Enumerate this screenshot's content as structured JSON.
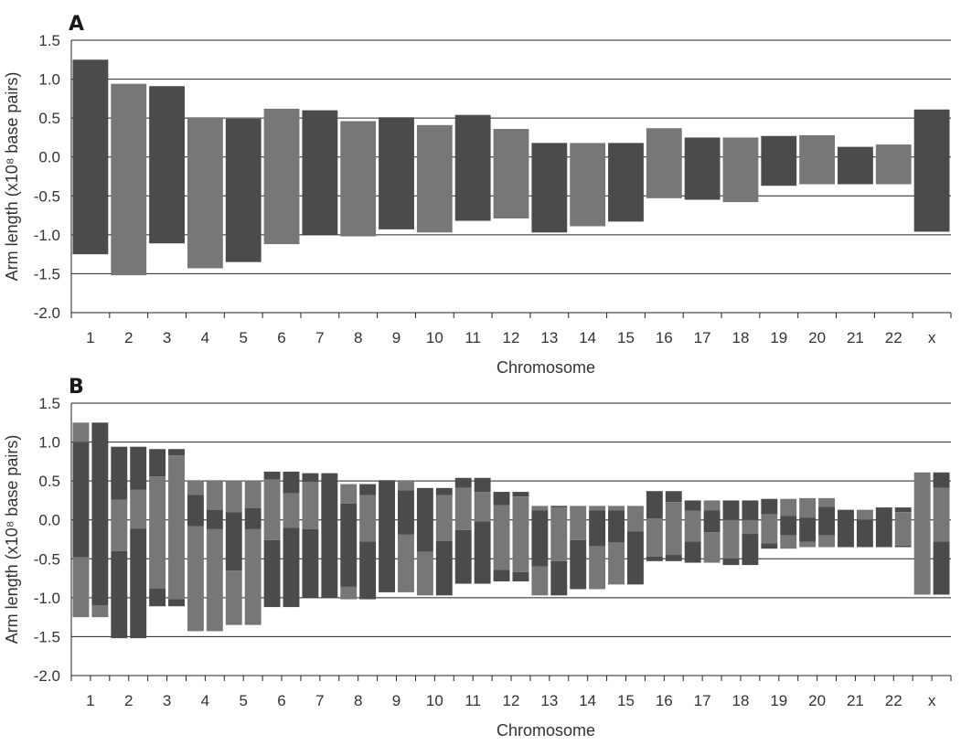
{
  "colors": {
    "dark": "#4b4b4b",
    "light": "#777777",
    "axis": "#222222",
    "text": "#333333"
  },
  "chart_data": [
    {
      "panel": "A",
      "type": "bar",
      "xlabel": "Chromosome",
      "ylabel": "Arm length (x10⁸ base pairs)",
      "ylim": [
        -2.0,
        1.5
      ],
      "yticks": [
        "1.5",
        "1.0",
        "0.5",
        "0.0",
        "-0.5",
        "-1.0",
        "-1.5",
        "-2.0"
      ],
      "gridlines": [
        1.0,
        0.5,
        0.0,
        -0.5,
        -1.0,
        -1.5
      ],
      "categories": [
        "1",
        "2",
        "3",
        "4",
        "5",
        "6",
        "7",
        "8",
        "9",
        "10",
        "11",
        "12",
        "13",
        "14",
        "15",
        "16",
        "17",
        "18",
        "19",
        "20",
        "21",
        "22",
        "x"
      ],
      "bars": [
        {
          "top": 1.25,
          "bottom": -1.25
        },
        {
          "top": 0.94,
          "bottom": -1.52
        },
        {
          "top": 0.91,
          "bottom": -1.11
        },
        {
          "top": 0.51,
          "bottom": -1.43
        },
        {
          "top": 0.49,
          "bottom": -1.35
        },
        {
          "top": 0.62,
          "bottom": -1.12
        },
        {
          "top": 0.6,
          "bottom": -1.0
        },
        {
          "top": 0.46,
          "bottom": -1.02
        },
        {
          "top": 0.51,
          "bottom": -0.93
        },
        {
          "top": 0.41,
          "bottom": -0.97
        },
        {
          "top": 0.54,
          "bottom": -0.82
        },
        {
          "top": 0.36,
          "bottom": -0.79
        },
        {
          "top": 0.18,
          "bottom": -0.97
        },
        {
          "top": 0.18,
          "bottom": -0.89
        },
        {
          "top": 0.18,
          "bottom": -0.83
        },
        {
          "top": 0.37,
          "bottom": -0.53
        },
        {
          "top": 0.25,
          "bottom": -0.55
        },
        {
          "top": 0.25,
          "bottom": -0.58
        },
        {
          "top": 0.27,
          "bottom": -0.37
        },
        {
          "top": 0.28,
          "bottom": -0.35
        },
        {
          "top": 0.13,
          "bottom": -0.35
        },
        {
          "top": 0.16,
          "bottom": -0.35
        },
        {
          "top": 0.61,
          "bottom": -0.96
        }
      ]
    },
    {
      "panel": "B",
      "type": "bar",
      "xlabel": "Chromosome",
      "ylabel": "Arm length (x10⁸ base pairs)",
      "ylim": [
        -2.0,
        1.5
      ],
      "yticks": [
        "1.5",
        "1.0",
        "0.5",
        "0.0",
        "-0.5",
        "-1.0",
        "-1.5",
        "-2.0"
      ],
      "gridlines": [
        1.0,
        0.5,
        0.0,
        -0.5,
        -1.0,
        -1.5
      ],
      "categories": [
        "1",
        "2",
        "3",
        "4",
        "5",
        "6",
        "7",
        "8",
        "9",
        "10",
        "11",
        "12",
        "13",
        "14",
        "15",
        "16",
        "17",
        "18",
        "19",
        "20",
        "21",
        "22",
        "x"
      ],
      "bars": [
        {
          "segs": [
            [
              1.25,
              1.0,
              "light"
            ],
            [
              1.0,
              -0.48,
              "dark"
            ],
            [
              -0.48,
              -1.25,
              "light"
            ]
          ]
        },
        {
          "segs": [
            [
              1.25,
              -1.1,
              "dark"
            ],
            [
              -1.1,
              -1.25,
              "light"
            ]
          ]
        },
        {
          "segs": [
            [
              0.94,
              0.26,
              "dark"
            ],
            [
              0.26,
              -0.4,
              "light"
            ],
            [
              -0.4,
              -1.52,
              "dark"
            ]
          ]
        },
        {
          "segs": [
            [
              0.94,
              0.39,
              "dark"
            ],
            [
              0.39,
              -0.11,
              "light"
            ],
            [
              -0.11,
              -1.52,
              "dark"
            ]
          ]
        },
        {
          "segs": [
            [
              0.91,
              0.56,
              "dark"
            ],
            [
              0.56,
              -0.88,
              "light"
            ],
            [
              -0.88,
              -1.11,
              "dark"
            ]
          ]
        },
        {
          "segs": [
            [
              0.91,
              0.83,
              "dark"
            ],
            [
              0.83,
              -1.02,
              "light"
            ],
            [
              -1.02,
              -1.11,
              "dark"
            ]
          ]
        },
        {
          "segs": [
            [
              0.51,
              0.32,
              "light"
            ],
            [
              0.32,
              -0.08,
              "dark"
            ],
            [
              -0.08,
              -1.43,
              "light"
            ]
          ]
        },
        {
          "segs": [
            [
              0.51,
              0.13,
              "light"
            ],
            [
              0.13,
              -0.12,
              "dark"
            ],
            [
              -0.12,
              -1.43,
              "light"
            ]
          ]
        },
        {
          "segs": [
            [
              0.49,
              0.1,
              "light"
            ],
            [
              0.1,
              -0.65,
              "dark"
            ],
            [
              -0.65,
              -1.35,
              "light"
            ]
          ]
        },
        {
          "segs": [
            [
              0.49,
              0.15,
              "light"
            ],
            [
              0.15,
              -0.12,
              "dark"
            ],
            [
              -0.12,
              -1.35,
              "light"
            ]
          ]
        },
        {
          "segs": [
            [
              0.62,
              0.52,
              "dark"
            ],
            [
              0.52,
              -0.26,
              "light"
            ],
            [
              -0.26,
              -1.12,
              "dark"
            ]
          ]
        },
        {
          "segs": [
            [
              0.62,
              0.34,
              "dark"
            ],
            [
              0.34,
              -0.1,
              "light"
            ],
            [
              -0.1,
              -1.12,
              "dark"
            ]
          ]
        },
        {
          "segs": [
            [
              0.6,
              0.49,
              "dark"
            ],
            [
              0.49,
              -0.12,
              "light"
            ],
            [
              -0.12,
              -1.0,
              "dark"
            ]
          ]
        },
        {
          "segs": [
            [
              0.6,
              -1.0,
              "dark"
            ]
          ]
        },
        {
          "segs": [
            [
              0.46,
              0.21,
              "light"
            ],
            [
              0.21,
              -0.86,
              "dark"
            ],
            [
              -0.86,
              -1.02,
              "light"
            ]
          ]
        },
        {
          "segs": [
            [
              0.46,
              0.32,
              "dark"
            ],
            [
              0.32,
              -0.28,
              "light"
            ],
            [
              -0.28,
              -1.02,
              "dark"
            ]
          ]
        },
        {
          "segs": [
            [
              0.51,
              -0.93,
              "dark"
            ]
          ]
        },
        {
          "segs": [
            [
              0.51,
              0.38,
              "light"
            ],
            [
              0.38,
              -0.19,
              "dark"
            ],
            [
              -0.19,
              -0.93,
              "light"
            ]
          ]
        },
        {
          "segs": [
            [
              0.41,
              -0.41,
              "dark"
            ],
            [
              -0.41,
              -0.97,
              "light"
            ]
          ]
        },
        {
          "segs": [
            [
              0.41,
              0.32,
              "dark"
            ],
            [
              0.32,
              -0.27,
              "light"
            ],
            [
              -0.27,
              -0.97,
              "dark"
            ]
          ]
        },
        {
          "segs": [
            [
              0.54,
              0.41,
              "dark"
            ],
            [
              0.41,
              -0.13,
              "light"
            ],
            [
              -0.13,
              -0.82,
              "dark"
            ]
          ]
        },
        {
          "segs": [
            [
              0.54,
              0.36,
              "dark"
            ],
            [
              0.36,
              -0.02,
              "light"
            ],
            [
              -0.02,
              -0.82,
              "dark"
            ]
          ]
        },
        {
          "segs": [
            [
              0.36,
              0.19,
              "dark"
            ],
            [
              0.19,
              -0.64,
              "light"
            ],
            [
              -0.64,
              -0.79,
              "dark"
            ]
          ]
        },
        {
          "segs": [
            [
              0.36,
              0.3,
              "dark"
            ],
            [
              0.3,
              -0.67,
              "light"
            ],
            [
              -0.67,
              -0.79,
              "dark"
            ]
          ]
        },
        {
          "segs": [
            [
              0.18,
              0.12,
              "light"
            ],
            [
              0.12,
              -0.6,
              "dark"
            ],
            [
              -0.6,
              -0.97,
              "light"
            ]
          ]
        },
        {
          "segs": [
            [
              0.18,
              0.16,
              "dark"
            ],
            [
              0.16,
              -0.53,
              "light"
            ],
            [
              -0.53,
              -0.97,
              "dark"
            ]
          ]
        },
        {
          "segs": [
            [
              0.18,
              0.05,
              "light"
            ],
            [
              0.05,
              -0.26,
              "light2"
            ],
            [
              -0.26,
              -0.89,
              "dark"
            ]
          ]
        },
        {
          "segs": [
            [
              0.18,
              0.12,
              "light"
            ],
            [
              0.12,
              -0.34,
              "dark"
            ],
            [
              -0.34,
              -0.89,
              "light"
            ]
          ]
        },
        {
          "segs": [
            [
              0.18,
              0.12,
              "light"
            ],
            [
              0.12,
              -0.29,
              "dark"
            ],
            [
              -0.29,
              -0.83,
              "light"
            ]
          ]
        },
        {
          "segs": [
            [
              0.18,
              -0.15,
              "light"
            ],
            [
              -0.15,
              -0.83,
              "dark"
            ]
          ]
        },
        {
          "segs": [
            [
              0.37,
              0.02,
              "dark"
            ],
            [
              0.02,
              -0.47,
              "light"
            ],
            [
              -0.47,
              -0.53,
              "dark"
            ]
          ]
        },
        {
          "segs": [
            [
              0.37,
              0.23,
              "dark"
            ],
            [
              0.23,
              -0.45,
              "light"
            ],
            [
              -0.45,
              -0.53,
              "dark"
            ]
          ]
        },
        {
          "segs": [
            [
              0.25,
              0.12,
              "dark"
            ],
            [
              0.12,
              -0.28,
              "light"
            ],
            [
              -0.28,
              -0.55,
              "dark"
            ]
          ]
        },
        {
          "segs": [
            [
              0.25,
              0.12,
              "light"
            ],
            [
              0.12,
              -0.16,
              "dark"
            ],
            [
              -0.16,
              -0.55,
              "light"
            ]
          ]
        },
        {
          "segs": [
            [
              0.25,
              0.0,
              "dark"
            ],
            [
              0.0,
              -0.5,
              "light"
            ],
            [
              -0.5,
              -0.58,
              "dark"
            ]
          ]
        },
        {
          "segs": [
            [
              0.25,
              0.0,
              "dark"
            ],
            [
              0.0,
              -0.18,
              "light"
            ],
            [
              -0.18,
              -0.58,
              "dark"
            ]
          ]
        },
        {
          "segs": [
            [
              0.27,
              0.07,
              "dark"
            ],
            [
              0.07,
              -0.3,
              "light"
            ],
            [
              -0.3,
              -0.37,
              "dark"
            ]
          ]
        },
        {
          "segs": [
            [
              0.27,
              0.05,
              "light"
            ],
            [
              0.05,
              -0.2,
              "dark"
            ],
            [
              -0.2,
              -0.37,
              "light"
            ]
          ]
        },
        {
          "segs": [
            [
              0.28,
              0.03,
              "light"
            ],
            [
              0.03,
              -0.28,
              "dark"
            ],
            [
              -0.28,
              -0.35,
              "light"
            ]
          ]
        },
        {
          "segs": [
            [
              0.28,
              0.17,
              "light"
            ],
            [
              0.17,
              -0.2,
              "dark"
            ],
            [
              -0.2,
              -0.35,
              "light"
            ]
          ]
        },
        {
          "segs": [
            [
              0.13,
              -0.35,
              "dark"
            ]
          ]
        },
        {
          "segs": [
            [
              0.13,
              0.0,
              "light"
            ],
            [
              0.0,
              -0.35,
              "dark"
            ]
          ]
        },
        {
          "segs": [
            [
              0.16,
              -0.35,
              "dark"
            ]
          ]
        },
        {
          "segs": [
            [
              0.16,
              0.1,
              "dark"
            ],
            [
              0.1,
              -0.33,
              "light"
            ],
            [
              -0.33,
              -0.35,
              "dark"
            ]
          ]
        },
        {
          "segs": [
            [
              0.61,
              -0.18,
              "light"
            ],
            [
              -0.18,
              -0.96,
              "light"
            ]
          ]
        },
        {
          "segs": [
            [
              0.61,
              0.41,
              "dark"
            ],
            [
              0.41,
              -0.28,
              "light"
            ],
            [
              -0.28,
              -0.96,
              "dark"
            ]
          ]
        }
      ]
    }
  ]
}
